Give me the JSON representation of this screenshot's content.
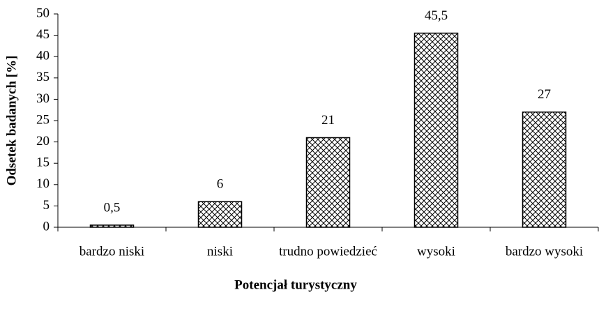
{
  "chart_data": {
    "type": "bar",
    "categories": [
      "bardzo niski",
      "niski",
      "trudno powiedzieć",
      "wysoki",
      "bardzo wysoki"
    ],
    "values": [
      0.5,
      6,
      21,
      45.5,
      27
    ],
    "value_labels": [
      "0,5",
      "6",
      "21",
      "45,5",
      "27"
    ],
    "color": "#000000",
    "x_label": "Potencjał turystyczny",
    "y_label": "Odsetek badanych [%]",
    "ylim": [
      0,
      50
    ],
    "yticks": [
      0,
      5,
      10,
      15,
      20,
      25,
      30,
      35,
      40,
      45,
      50
    ]
  }
}
